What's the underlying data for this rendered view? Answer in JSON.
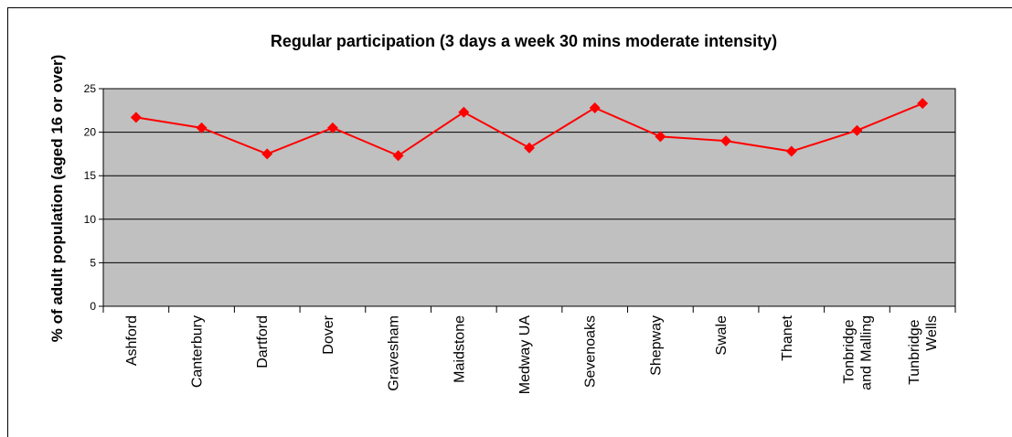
{
  "chart_data": {
    "type": "line",
    "title": "Regular participation (3 days a week 30 mins moderate intensity)",
    "y_label": "% of adult population (aged 16 or over)",
    "categories": [
      "Ashford",
      "Canterbury",
      "Dartford",
      "Dover",
      "Gravesham",
      "Maidstone",
      "Medway UA",
      "Sevenoaks",
      "Shepway",
      "Swale",
      "Thanet",
      "Tonbridge and Malling",
      "Tunbridge Wells"
    ],
    "series": [
      {
        "color": "#ff0000",
        "values": [
          21.7,
          20.5,
          17.5,
          20.5,
          17.3,
          22.3,
          18.2,
          22.8,
          19.5,
          19.0,
          17.8,
          20.2,
          23.3
        ]
      }
    ],
    "ylim": [
      0,
      25
    ],
    "yticks": [
      0,
      5,
      10,
      15,
      20,
      25
    ],
    "grid": true
  }
}
